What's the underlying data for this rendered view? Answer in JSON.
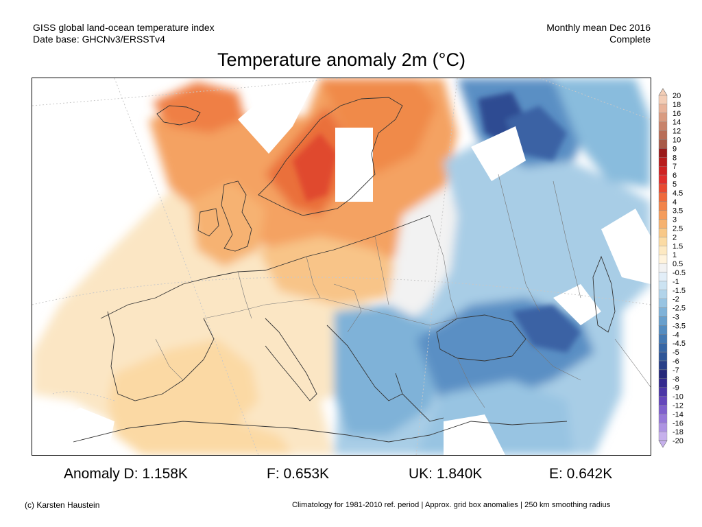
{
  "header": {
    "source_line1": "GISS global land-ocean temperature index",
    "source_line2": "Date base: GHCNv3/ERSSTv4",
    "period_line1": "Monthly mean Dec 2016",
    "period_line2": "Complete"
  },
  "title": "Temperature anomaly 2m (°C)",
  "map": {
    "region": "Europe",
    "variable": "2m temperature anomaly",
    "unit": "°C"
  },
  "legend": {
    "labels": [
      "20",
      "18",
      "16",
      "14",
      "12",
      "10",
      "9",
      "8",
      "7",
      "6",
      "5",
      "4.5",
      "4",
      "3.5",
      "3",
      "2.5",
      "2",
      "1.5",
      "1",
      "0.5",
      "-0.5",
      "-1",
      "-1.5",
      "-2",
      "-2.5",
      "-3",
      "-3.5",
      "-4",
      "-4.5",
      "-5",
      "-6",
      "-7",
      "-8",
      "-9",
      "-10",
      "-12",
      "-14",
      "-16",
      "-18",
      "-20"
    ],
    "colors": [
      "#f3cdb6",
      "#e8b39a",
      "#d99b80",
      "#c8836a",
      "#b86e58",
      "#a85a48",
      "#9a1a1a",
      "#b81c1c",
      "#cf2222",
      "#e02e2c",
      "#e84a32",
      "#ef6a3c",
      "#f2844a",
      "#f49c5c",
      "#f6b270",
      "#f8c888",
      "#fbdba4",
      "#fde9c2",
      "#fff3dc",
      "#f2f2f2",
      "#e2eef8",
      "#cce3f2",
      "#b2d4ea",
      "#98c4e2",
      "#7fb2d8",
      "#689fcc",
      "#548cc0",
      "#4479b2",
      "#3766a4",
      "#2e5597",
      "#283f88",
      "#26297a",
      "#342a8e",
      "#4b36a6",
      "#6446bb",
      "#7e5fcc",
      "#9678d8",
      "#ad93e2",
      "#c6b0ec"
    ]
  },
  "stats": {
    "anomaly_d": "Anomaly D: 1.158K",
    "anomaly_f": "F: 0.653K",
    "anomaly_uk": "UK: 1.840K",
    "anomaly_e": "E: 0.642K"
  },
  "footer": {
    "copyright": "(c) Karsten Haustein",
    "note": "Climatology for 1981-2010 ref. period | Approx. grid box anomalies | 250 km smoothing radius"
  }
}
